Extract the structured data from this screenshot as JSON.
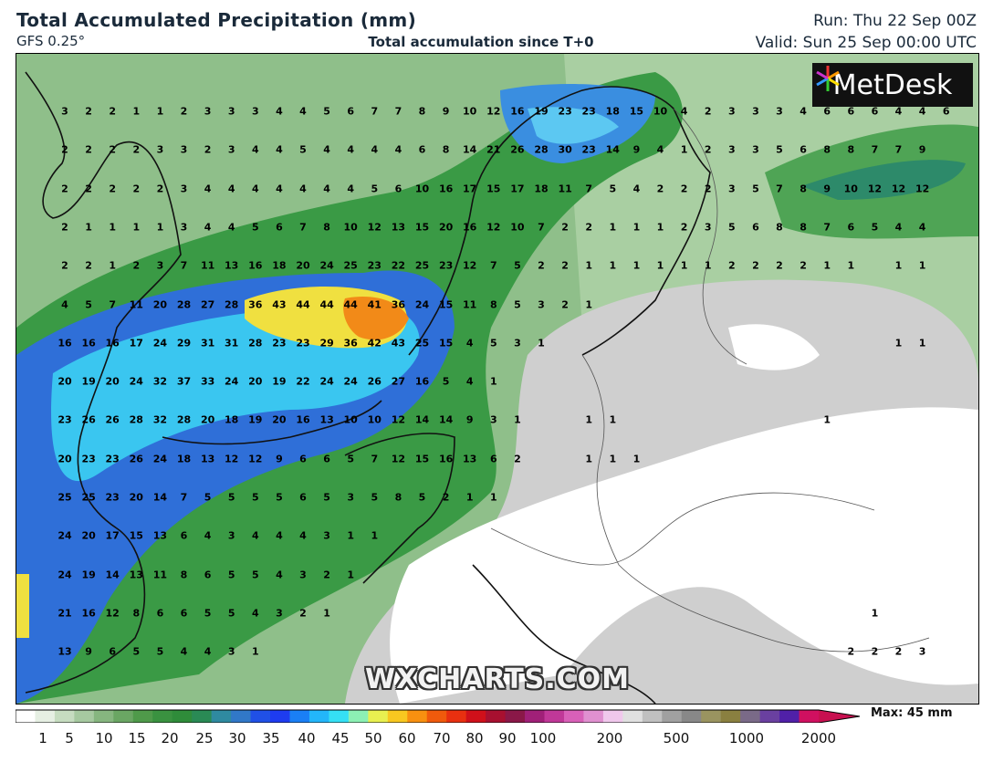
{
  "header": {
    "title": "Total Accumulated Precipitation (mm)",
    "model": "GFS 0.25°",
    "subtitle": "Total accumulation since T+0",
    "run": "Run: Thu 22 Sep 00Z",
    "valid": "Valid: Sun 25 Sep 00:00 UTC"
  },
  "logo": {
    "text": "MetDesk",
    "icon": "metdesk-star-icon"
  },
  "watermark": "WXCHARTS.COM",
  "legend": {
    "max_label": "Max: 45 mm",
    "tick_labels": [
      "1",
      "5",
      "10",
      "15",
      "20",
      "25",
      "30",
      "35",
      "40",
      "45",
      "50",
      "60",
      "70",
      "80",
      "90",
      "100",
      "200",
      "500",
      "1000",
      "2000"
    ],
    "colors": [
      "#ffffff",
      "#e6efe3",
      "#c6dcc0",
      "#a6c9a0",
      "#86b67f",
      "#6aa663",
      "#4f9a4a",
      "#3a9240",
      "#2f8c3a",
      "#2a8a55",
      "#2f8aa0",
      "#3178c8",
      "#2050e6",
      "#1e3cf0",
      "#1a7ff5",
      "#23b6fa",
      "#35e0f5",
      "#8cf0b4",
      "#e8f050",
      "#f8c820",
      "#f89010",
      "#f05a0c",
      "#e83010",
      "#d0101a",
      "#a81030",
      "#8a1848",
      "#a02078",
      "#c03898",
      "#d860b8",
      "#e090d0",
      "#f0c8ec",
      "#e0e0e0",
      "#c0c0c0",
      "#a0a0a0",
      "#888888",
      "#9a9460",
      "#8a8040",
      "#7a6a88",
      "#6a40a0",
      "#5020a8",
      "#d01060"
    ]
  },
  "map": {
    "grid_rows": [
      [
        "3",
        "2",
        "2",
        "1",
        "1",
        "2",
        "3",
        "3",
        "3",
        "4",
        "4",
        "5",
        "6",
        "7",
        "7",
        "8",
        "9",
        "10",
        "12",
        "16",
        "19",
        "23",
        "23",
        "18",
        "15",
        "10",
        "4",
        "2",
        "3",
        "3",
        "3",
        "4",
        "6",
        "6",
        "6",
        "4",
        "4",
        "6"
      ],
      [
        "2",
        "2",
        "2",
        "2",
        "3",
        "3",
        "2",
        "3",
        "4",
        "4",
        "5",
        "4",
        "4",
        "4",
        "4",
        "6",
        "8",
        "14",
        "21",
        "26",
        "28",
        "30",
        "23",
        "14",
        "9",
        "4",
        "1",
        "2",
        "3",
        "3",
        "5",
        "6",
        "8",
        "8",
        "7",
        "7",
        "9",
        ""
      ],
      [
        "2",
        "2",
        "2",
        "2",
        "2",
        "3",
        "4",
        "4",
        "4",
        "4",
        "4",
        "4",
        "4",
        "5",
        "6",
        "10",
        "16",
        "17",
        "15",
        "17",
        "18",
        "11",
        "7",
        "5",
        "4",
        "2",
        "2",
        "2",
        "3",
        "5",
        "7",
        "8",
        "9",
        "10",
        "12",
        "12",
        "12",
        ""
      ],
      [
        "2",
        "1",
        "1",
        "1",
        "1",
        "3",
        "4",
        "4",
        "5",
        "6",
        "7",
        "8",
        "10",
        "12",
        "13",
        "15",
        "20",
        "16",
        "12",
        "10",
        "7",
        "2",
        "2",
        "1",
        "1",
        "1",
        "2",
        "3",
        "5",
        "6",
        "8",
        "8",
        "7",
        "6",
        "5",
        "4",
        "4",
        ""
      ],
      [
        "2",
        "2",
        "1",
        "2",
        "3",
        "7",
        "11",
        "13",
        "16",
        "18",
        "20",
        "24",
        "25",
        "23",
        "22",
        "25",
        "23",
        "12",
        "7",
        "5",
        "2",
        "2",
        "1",
        "1",
        "1",
        "1",
        "1",
        "1",
        "2",
        "2",
        "2",
        "2",
        "1",
        "1",
        "",
        "1",
        "1",
        ""
      ],
      [
        "4",
        "5",
        "7",
        "11",
        "20",
        "28",
        "27",
        "28",
        "36",
        "43",
        "44",
        "44",
        "44",
        "41",
        "36",
        "24",
        "15",
        "11",
        "8",
        "5",
        "3",
        "2",
        "1",
        "",
        "",
        "",
        "",
        "",
        "",
        "",
        "",
        "",
        "",
        "",
        "",
        "",
        "",
        ""
      ],
      [
        "16",
        "16",
        "16",
        "17",
        "24",
        "29",
        "31",
        "31",
        "28",
        "23",
        "23",
        "29",
        "36",
        "42",
        "43",
        "25",
        "15",
        "4",
        "5",
        "3",
        "1",
        "",
        "",
        "",
        "",
        "",
        "",
        "",
        "",
        "",
        "",
        "",
        "",
        "",
        "",
        "1",
        "1",
        ""
      ],
      [
        "20",
        "19",
        "20",
        "24",
        "32",
        "37",
        "33",
        "24",
        "20",
        "19",
        "22",
        "24",
        "24",
        "26",
        "27",
        "16",
        "5",
        "4",
        "1",
        "",
        "",
        "",
        "",
        "",
        "",
        "",
        "",
        "",
        "",
        "",
        "",
        "",
        "",
        "",
        "",
        "",
        "",
        ""
      ],
      [
        "23",
        "26",
        "26",
        "28",
        "32",
        "28",
        "20",
        "18",
        "19",
        "20",
        "16",
        "13",
        "10",
        "10",
        "12",
        "14",
        "14",
        "9",
        "3",
        "1",
        "",
        "",
        "1",
        "1",
        "",
        "",
        "",
        "",
        "",
        "",
        "",
        "",
        "1",
        "",
        "",
        "",
        "",
        ""
      ],
      [
        "20",
        "23",
        "23",
        "26",
        "24",
        "18",
        "13",
        "12",
        "12",
        "9",
        "6",
        "6",
        "5",
        "7",
        "12",
        "15",
        "16",
        "13",
        "6",
        "2",
        "",
        "",
        "1",
        "1",
        "1",
        "",
        "",
        "",
        "",
        "",
        "",
        "",
        "",
        "",
        "",
        "",
        "",
        ""
      ],
      [
        "25",
        "25",
        "23",
        "20",
        "14",
        "7",
        "5",
        "5",
        "5",
        "5",
        "6",
        "5",
        "3",
        "5",
        "8",
        "5",
        "2",
        "1",
        "1",
        "",
        "",
        "",
        "",
        "",
        "",
        "",
        "",
        "",
        "",
        "",
        "",
        "",
        "",
        "",
        "",
        "",
        "",
        ""
      ],
      [
        "24",
        "20",
        "17",
        "15",
        "13",
        "6",
        "4",
        "3",
        "4",
        "4",
        "4",
        "3",
        "1",
        "1",
        "",
        "",
        "",
        "",
        "",
        "",
        "",
        "",
        "",
        "",
        "",
        "",
        "",
        "",
        "",
        "",
        "",
        "",
        "",
        "",
        "",
        "",
        "",
        ""
      ],
      [
        "24",
        "19",
        "14",
        "13",
        "11",
        "8",
        "6",
        "5",
        "5",
        "4",
        "3",
        "2",
        "1",
        "",
        "",
        "",
        "",
        "",
        "",
        "",
        "",
        "",
        "",
        "",
        "",
        "",
        "",
        "",
        "",
        "",
        "",
        "",
        "",
        "",
        "",
        "",
        "",
        ""
      ],
      [
        "21",
        "16",
        "12",
        "8",
        "6",
        "6",
        "5",
        "5",
        "4",
        "3",
        "2",
        "1",
        "",
        "",
        "",
        "",
        "",
        "",
        "",
        "",
        "",
        "",
        "",
        "",
        "",
        "",
        "",
        "",
        "",
        "",
        "",
        "",
        "",
        "",
        "1",
        "",
        "",
        ""
      ],
      [
        "13",
        "9",
        "6",
        "5",
        "5",
        "4",
        "4",
        "3",
        "1",
        "",
        "",
        "",
        "",
        "",
        "",
        "",
        "",
        "",
        "",
        "",
        "",
        "",
        "",
        "",
        "",
        "",
        "",
        "",
        "",
        "",
        "",
        "",
        "",
        "2",
        "2",
        "2",
        "3",
        ""
      ]
    ]
  }
}
